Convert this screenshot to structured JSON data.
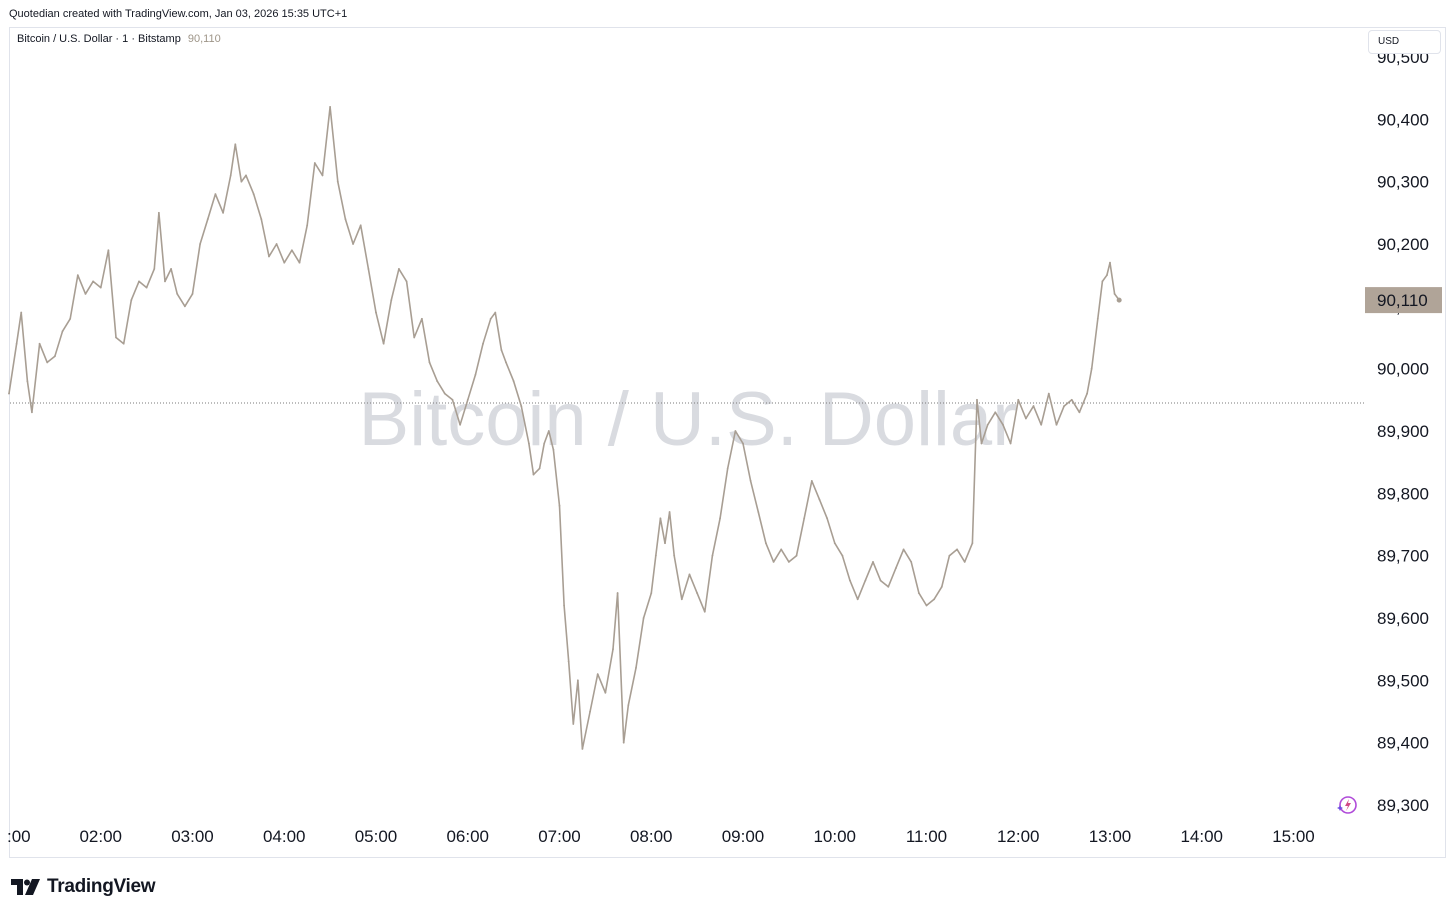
{
  "caption": "Quotedian created with TradingView.com, Jan 03, 2026 15:35 UTC+1",
  "legend": {
    "symbol": "Bitcoin / U.S. Dollar · 1 · Bitstamp",
    "price": "90,110"
  },
  "currency_button": "USD",
  "watermark": "Bitcoin / U.S. Dollar",
  "brand": "TradingView",
  "colors": {
    "line": "#a89e93",
    "price_tag_bg": "#b0a498",
    "watermark": "#d9dbe0",
    "reference_line": "#7a7a7a",
    "text": "#131722"
  },
  "chart_data": {
    "type": "line",
    "title": "",
    "xlabel": "",
    "ylabel": "",
    "currency": "USD",
    "x_ticks": [
      ":00",
      "02:00",
      "03:00",
      "04:00",
      "05:00",
      "06:00",
      "07:00",
      "08:00",
      "09:00",
      "10:00",
      "11:00",
      "12:00",
      "13:00",
      "14:00",
      "15:00"
    ],
    "y_ticks": [
      "89,300",
      "89,400",
      "89,500",
      "89,600",
      "89,700",
      "89,800",
      "89,900",
      "90,000",
      "90,100",
      "90,200",
      "90,300",
      "90,400",
      "90,500"
    ],
    "ylim": [
      89300,
      90500
    ],
    "last_price": 90110,
    "last_price_label": "90,110",
    "reference_line": 89945,
    "grid": false,
    "series": [
      {
        "points": [
          [
            "01:00",
            89960
          ],
          [
            "01:05",
            90040
          ],
          [
            "01:08",
            90090
          ],
          [
            "01:12",
            89980
          ],
          [
            "01:15",
            89930
          ],
          [
            "01:20",
            90040
          ],
          [
            "01:25",
            90010
          ],
          [
            "01:30",
            90020
          ],
          [
            "01:35",
            90060
          ],
          [
            "01:40",
            90080
          ],
          [
            "01:45",
            90150
          ],
          [
            "01:50",
            90120
          ],
          [
            "01:55",
            90140
          ],
          [
            "02:00",
            90130
          ],
          [
            "02:05",
            90190
          ],
          [
            "02:10",
            90050
          ],
          [
            "02:15",
            90040
          ],
          [
            "02:20",
            90110
          ],
          [
            "02:25",
            90140
          ],
          [
            "02:30",
            90130
          ],
          [
            "02:35",
            90160
          ],
          [
            "02:38",
            90250
          ],
          [
            "02:42",
            90140
          ],
          [
            "02:46",
            90160
          ],
          [
            "02:50",
            90120
          ],
          [
            "02:55",
            90100
          ],
          [
            "03:00",
            90120
          ],
          [
            "03:05",
            90200
          ],
          [
            "03:10",
            90240
          ],
          [
            "03:15",
            90280
          ],
          [
            "03:20",
            90250
          ],
          [
            "03:25",
            90310
          ],
          [
            "03:28",
            90360
          ],
          [
            "03:32",
            90300
          ],
          [
            "03:35",
            90310
          ],
          [
            "03:40",
            90280
          ],
          [
            "03:45",
            90240
          ],
          [
            "03:50",
            90180
          ],
          [
            "03:55",
            90200
          ],
          [
            "04:00",
            90170
          ],
          [
            "04:05",
            90190
          ],
          [
            "04:10",
            90170
          ],
          [
            "04:15",
            90230
          ],
          [
            "04:20",
            90330
          ],
          [
            "04:25",
            90310
          ],
          [
            "04:30",
            90420
          ],
          [
            "04:35",
            90300
          ],
          [
            "04:40",
            90240
          ],
          [
            "04:45",
            90200
          ],
          [
            "04:50",
            90230
          ],
          [
            "04:55",
            90160
          ],
          [
            "05:00",
            90090
          ],
          [
            "05:05",
            90040
          ],
          [
            "05:10",
            90110
          ],
          [
            "05:15",
            90160
          ],
          [
            "05:20",
            90140
          ],
          [
            "05:25",
            90050
          ],
          [
            "05:30",
            90080
          ],
          [
            "05:35",
            90010
          ],
          [
            "05:40",
            89980
          ],
          [
            "05:45",
            89960
          ],
          [
            "05:50",
            89950
          ],
          [
            "05:55",
            89910
          ],
          [
            "06:00",
            89950
          ],
          [
            "06:05",
            89990
          ],
          [
            "06:10",
            90040
          ],
          [
            "06:15",
            90080
          ],
          [
            "06:18",
            90090
          ],
          [
            "06:22",
            90030
          ],
          [
            "06:25",
            90010
          ],
          [
            "06:30",
            89980
          ],
          [
            "06:35",
            89940
          ],
          [
            "06:40",
            89880
          ],
          [
            "06:43",
            89830
          ],
          [
            "06:47",
            89840
          ],
          [
            "06:50",
            89880
          ],
          [
            "06:53",
            89900
          ],
          [
            "06:56",
            89870
          ],
          [
            "07:00",
            89780
          ],
          [
            "07:03",
            89620
          ],
          [
            "07:06",
            89530
          ],
          [
            "07:09",
            89430
          ],
          [
            "07:12",
            89500
          ],
          [
            "07:15",
            89390
          ],
          [
            "07:20",
            89450
          ],
          [
            "07:25",
            89510
          ],
          [
            "07:30",
            89480
          ],
          [
            "07:35",
            89550
          ],
          [
            "07:38",
            89640
          ],
          [
            "07:42",
            89400
          ],
          [
            "07:45",
            89460
          ],
          [
            "07:50",
            89520
          ],
          [
            "07:55",
            89600
          ],
          [
            "08:00",
            89640
          ],
          [
            "08:03",
            89700
          ],
          [
            "08:06",
            89760
          ],
          [
            "08:09",
            89720
          ],
          [
            "08:12",
            89770
          ],
          [
            "08:15",
            89700
          ],
          [
            "08:20",
            89630
          ],
          [
            "08:25",
            89670
          ],
          [
            "08:30",
            89640
          ],
          [
            "08:35",
            89610
          ],
          [
            "08:40",
            89700
          ],
          [
            "08:45",
            89760
          ],
          [
            "08:50",
            89840
          ],
          [
            "08:55",
            89900
          ],
          [
            "09:00",
            89880
          ],
          [
            "09:05",
            89820
          ],
          [
            "09:10",
            89770
          ],
          [
            "09:15",
            89720
          ],
          [
            "09:20",
            89690
          ],
          [
            "09:25",
            89710
          ],
          [
            "09:30",
            89690
          ],
          [
            "09:35",
            89700
          ],
          [
            "09:40",
            89760
          ],
          [
            "09:45",
            89820
          ],
          [
            "09:50",
            89790
          ],
          [
            "09:55",
            89760
          ],
          [
            "10:00",
            89720
          ],
          [
            "10:05",
            89700
          ],
          [
            "10:10",
            89660
          ],
          [
            "10:15",
            89630
          ],
          [
            "10:20",
            89660
          ],
          [
            "10:25",
            89690
          ],
          [
            "10:30",
            89660
          ],
          [
            "10:35",
            89650
          ],
          [
            "10:40",
            89680
          ],
          [
            "10:45",
            89710
          ],
          [
            "10:50",
            89690
          ],
          [
            "10:55",
            89640
          ],
          [
            "11:00",
            89620
          ],
          [
            "11:05",
            89630
          ],
          [
            "11:10",
            89650
          ],
          [
            "11:15",
            89700
          ],
          [
            "11:20",
            89710
          ],
          [
            "11:25",
            89690
          ],
          [
            "11:30",
            89720
          ],
          [
            "11:33",
            89950
          ],
          [
            "11:36",
            89880
          ],
          [
            "11:40",
            89910
          ],
          [
            "11:45",
            89930
          ],
          [
            "11:50",
            89910
          ],
          [
            "11:55",
            89880
          ],
          [
            "12:00",
            89950
          ],
          [
            "12:05",
            89920
          ],
          [
            "12:10",
            89940
          ],
          [
            "12:15",
            89910
          ],
          [
            "12:20",
            89960
          ],
          [
            "12:25",
            89910
          ],
          [
            "12:30",
            89940
          ],
          [
            "12:35",
            89950
          ],
          [
            "12:40",
            89930
          ],
          [
            "12:45",
            89960
          ],
          [
            "12:48",
            90000
          ],
          [
            "12:52",
            90080
          ],
          [
            "12:55",
            90140
          ],
          [
            "12:58",
            90150
          ],
          [
            "13:00",
            90170
          ],
          [
            "13:03",
            90120
          ],
          [
            "13:06",
            90110
          ]
        ]
      }
    ]
  }
}
